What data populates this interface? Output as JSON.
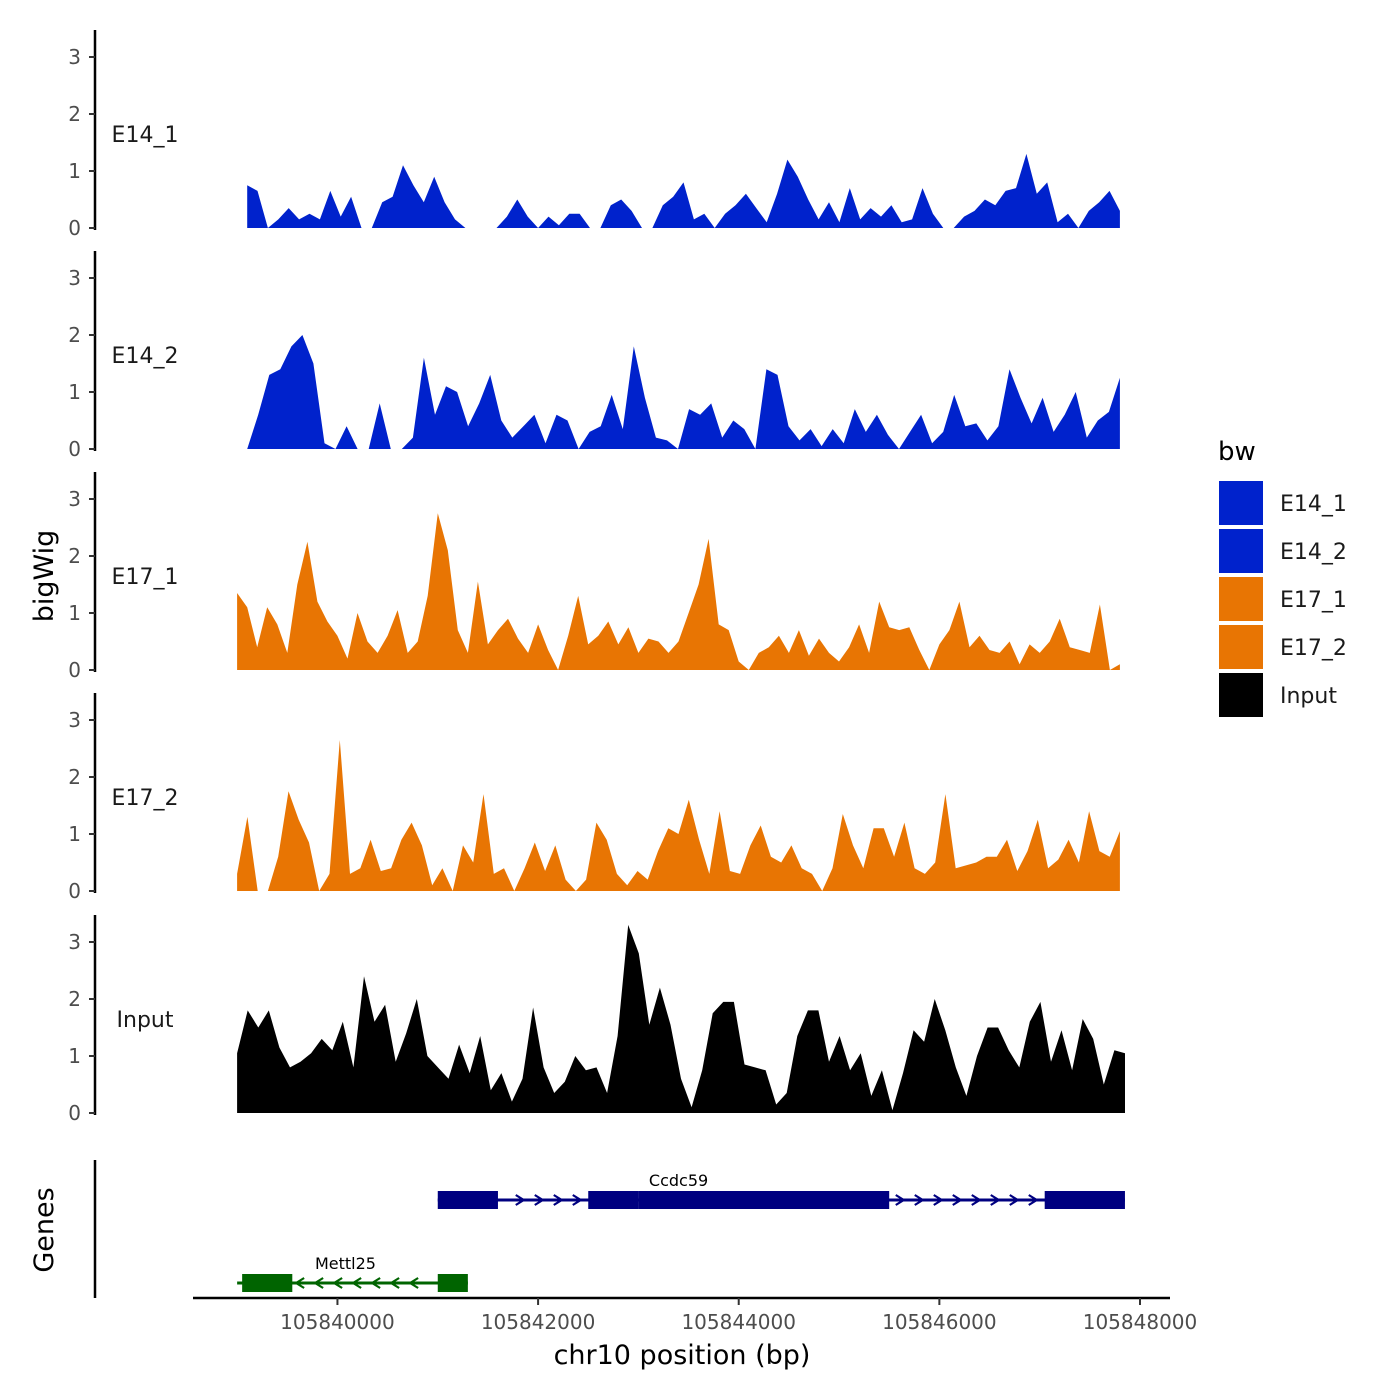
{
  "chart_data": {
    "type": "area",
    "title": "",
    "ylabel": "bigWig",
    "xlabel": "chr10 position (bp)",
    "genes_label": "Genes",
    "xlim": [
      105838600,
      105848000
    ],
    "ylim": [
      0,
      3.4
    ],
    "yticks": [
      0,
      1,
      2,
      3
    ],
    "xticks": [
      105840000,
      105842000,
      105844000,
      105846000,
      105848000
    ],
    "xtick_labels": [
      "105840000",
      "105842000",
      "105844000",
      "105846000",
      "105848000"
    ],
    "legend": {
      "title": "bw",
      "position": "right",
      "items": [
        {
          "label": "E14_1",
          "color": "#0022CC"
        },
        {
          "label": "E14_2",
          "color": "#0022CC"
        },
        {
          "label": "E17_1",
          "color": "#E87503"
        },
        {
          "label": "E17_2",
          "color": "#E87503"
        },
        {
          "label": "Input",
          "color": "#000000"
        }
      ]
    },
    "series": [
      {
        "name": "E14_1",
        "color": "#0022CC",
        "x_start": 105839100,
        "x_end": 105847800,
        "values": [
          0.75,
          0.65,
          0,
          0.15,
          0.35,
          0.15,
          0.25,
          0.15,
          0.65,
          0.2,
          0.55,
          0,
          0,
          0.45,
          0.55,
          1.1,
          0.75,
          0.45,
          0.9,
          0.45,
          0.15,
          0,
          0,
          0,
          0,
          0.2,
          0.5,
          0.2,
          0,
          0.2,
          0.05,
          0.25,
          0.25,
          0,
          0,
          0.4,
          0.5,
          0.3,
          0,
          0,
          0.4,
          0.55,
          0.8,
          0.15,
          0.25,
          0,
          0.25,
          0.4,
          0.6,
          0.35,
          0.1,
          0.6,
          1.2,
          0.9,
          0.5,
          0.15,
          0.45,
          0.1,
          0.7,
          0.15,
          0.35,
          0.2,
          0.4,
          0.1,
          0.15,
          0.7,
          0.25,
          0,
          0,
          0.2,
          0.3,
          0.5,
          0.4,
          0.65,
          0.7,
          1.3,
          0.6,
          0.8,
          0.1,
          0.25,
          0,
          0.3,
          0.45,
          0.65,
          0.3
        ]
      },
      {
        "name": "E14_2",
        "color": "#0022CC",
        "x_start": 105839100,
        "x_end": 105847800,
        "values": [
          0,
          0.6,
          1.3,
          1.4,
          1.8,
          2.0,
          1.5,
          0.1,
          0,
          0.4,
          0,
          0,
          0.8,
          0,
          0,
          0.2,
          1.6,
          0.6,
          1.1,
          1.0,
          0.4,
          0.8,
          1.3,
          0.5,
          0.2,
          0.4,
          0.6,
          0.1,
          0.6,
          0.5,
          0,
          0.3,
          0.4,
          0.95,
          0.35,
          1.8,
          0.9,
          0.2,
          0.15,
          0,
          0.7,
          0.6,
          0.8,
          0.2,
          0.5,
          0.35,
          0,
          1.4,
          1.3,
          0.4,
          0.15,
          0.35,
          0.05,
          0.35,
          0.1,
          0.7,
          0.3,
          0.6,
          0.25,
          0,
          0.3,
          0.6,
          0.1,
          0.3,
          0.95,
          0.4,
          0.45,
          0.15,
          0.4,
          1.4,
          0.9,
          0.45,
          0.9,
          0.3,
          0.6,
          1.0,
          0.2,
          0.5,
          0.65,
          1.25
        ]
      },
      {
        "name": "E17_1",
        "color": "#E87503",
        "x_start": 105839000,
        "x_end": 105847800,
        "values": [
          1.35,
          1.1,
          0.4,
          1.1,
          0.8,
          0.3,
          1.5,
          2.25,
          1.2,
          0.85,
          0.6,
          0.2,
          1.0,
          0.5,
          0.3,
          0.6,
          1.05,
          0.3,
          0.5,
          1.3,
          2.75,
          2.1,
          0.7,
          0.3,
          1.55,
          0.45,
          0.7,
          0.9,
          0.55,
          0.3,
          0.8,
          0.35,
          0,
          0.6,
          1.3,
          0.45,
          0.6,
          0.85,
          0.45,
          0.75,
          0.3,
          0.55,
          0.5,
          0.3,
          0.5,
          1.0,
          1.5,
          2.3,
          0.8,
          0.7,
          0.15,
          0,
          0.3,
          0.4,
          0.6,
          0.3,
          0.7,
          0.25,
          0.55,
          0.3,
          0.15,
          0.4,
          0.8,
          0.3,
          1.2,
          0.75,
          0.7,
          0.75,
          0.35,
          0,
          0.45,
          0.7,
          1.2,
          0.4,
          0.6,
          0.35,
          0.3,
          0.5,
          0.1,
          0.45,
          0.3,
          0.5,
          0.9,
          0.4,
          0.35,
          0.3,
          1.15,
          0,
          0.1
        ]
      },
      {
        "name": "E17_2",
        "color": "#E87503",
        "x_start": 105839000,
        "x_end": 105847800,
        "values": [
          0.3,
          1.3,
          0,
          0,
          0.6,
          1.75,
          1.25,
          0.85,
          0,
          0.3,
          2.65,
          0.3,
          0.4,
          0.9,
          0.35,
          0.4,
          0.9,
          1.2,
          0.8,
          0.1,
          0.4,
          0,
          0.8,
          0.5,
          1.7,
          0.3,
          0.4,
          0,
          0.4,
          0.85,
          0.35,
          0.8,
          0.2,
          0,
          0.2,
          1.2,
          0.9,
          0.3,
          0.1,
          0.35,
          0.2,
          0.7,
          1.1,
          1.0,
          1.6,
          0.9,
          0.3,
          1.4,
          0.35,
          0.3,
          0.8,
          1.15,
          0.6,
          0.5,
          0.8,
          0.4,
          0.3,
          0,
          0.4,
          1.35,
          0.8,
          0.4,
          1.1,
          1.1,
          0.6,
          1.2,
          0.4,
          0.3,
          0.5,
          1.7,
          0.4,
          0.45,
          0.5,
          0.6,
          0.6,
          0.9,
          0.35,
          0.7,
          1.25,
          0.4,
          0.55,
          0.9,
          0.5,
          1.4,
          0.7,
          0.6,
          1.05
        ]
      },
      {
        "name": "Input",
        "color": "#000000",
        "x_start": 105839000,
        "x_end": 105847850,
        "values": [
          1.05,
          1.8,
          1.5,
          1.8,
          1.15,
          0.8,
          0.9,
          1.05,
          1.3,
          1.1,
          1.6,
          0.8,
          2.4,
          1.6,
          1.9,
          0.9,
          1.4,
          2.0,
          1.0,
          0.8,
          0.6,
          1.2,
          0.7,
          1.35,
          0.4,
          0.7,
          0.2,
          0.6,
          1.85,
          0.8,
          0.35,
          0.55,
          1.0,
          0.75,
          0.8,
          0.35,
          1.35,
          3.3,
          2.8,
          1.55,
          2.2,
          1.55,
          0.6,
          0.1,
          0.75,
          1.75,
          1.95,
          1.95,
          0.85,
          0.8,
          0.75,
          0.15,
          0.35,
          1.35,
          1.8,
          1.8,
          0.9,
          1.35,
          0.75,
          1.05,
          0.3,
          0.75,
          0.05,
          0.7,
          1.45,
          1.25,
          2.0,
          1.45,
          0.8,
          0.3,
          1.0,
          1.5,
          1.5,
          1.1,
          0.8,
          1.6,
          1.95,
          0.9,
          1.45,
          0.75,
          1.65,
          1.3,
          0.5,
          1.1,
          1.05
        ]
      }
    ],
    "genes": [
      {
        "name": "Ccdc59",
        "strand": "+",
        "color": "#000080",
        "start": 105841000,
        "end": 105847850,
        "exons": [
          [
            105841000,
            105841600
          ],
          [
            105842500,
            105843000
          ],
          [
            105843000,
            105845500
          ],
          [
            105847050,
            105847850
          ]
        ]
      },
      {
        "name": "Mettl25",
        "strand": "-",
        "color": "#006400",
        "start": 105839000,
        "end": 105841300,
        "exons": [
          [
            105839050,
            105839550
          ],
          [
            105841000,
            105841300
          ]
        ]
      }
    ]
  }
}
